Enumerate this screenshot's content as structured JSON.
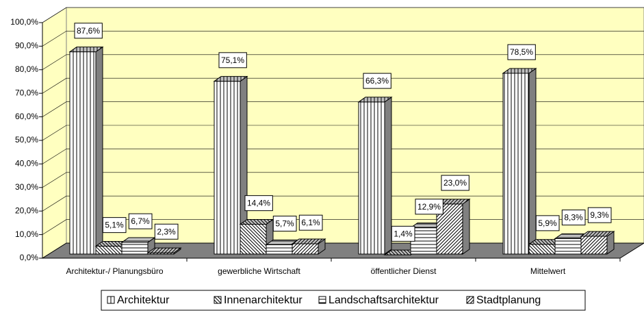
{
  "chart_data": {
    "type": "bar3d",
    "categories": [
      "Architektur-/ Planungsbüro",
      "gewerbliche Wirtschaft",
      "öffentlicher Dienst",
      "Mittelwert"
    ],
    "series": [
      {
        "name": "Architektur",
        "color": "#000000",
        "values": [
          87.6,
          75.1,
          66.3,
          78.5
        ],
        "value_labels": [
          "87,6%",
          "75,1%",
          "66,3%",
          "78,5%"
        ]
      },
      {
        "name": "Innenarchitektur",
        "color": "#000000",
        "values": [
          5.1,
          14.4,
          1.4,
          5.9
        ],
        "value_labels": [
          "5,1%",
          "14,4%",
          "1,4%",
          "5,9%"
        ]
      },
      {
        "name": "Landschaftsarchitektur",
        "color": "#000000",
        "values": [
          6.7,
          5.7,
          12.9,
          8.3
        ],
        "value_labels": [
          "6,7%",
          "5,7%",
          "12,9%",
          "8,3%"
        ]
      },
      {
        "name": "Stadtplanung",
        "color": "#000000",
        "values": [
          2.3,
          6.1,
          23.0,
          9.3
        ],
        "value_labels": [
          "2,3%",
          "6,1%",
          "23,0%",
          "9,3%"
        ]
      }
    ],
    "ylim": [
      0,
      100
    ],
    "yticks": [
      {
        "value": 0,
        "label": "0,0%"
      },
      {
        "value": 10,
        "label": "10,0%"
      },
      {
        "value": 20,
        "label": "20,0%"
      },
      {
        "value": 30,
        "label": "30,0%"
      },
      {
        "value": 40,
        "label": "40,0%"
      },
      {
        "value": 50,
        "label": "50,0%"
      },
      {
        "value": 60,
        "label": "60,0%"
      },
      {
        "value": 70,
        "label": "70,0%"
      },
      {
        "value": 80,
        "label": "80,0%"
      },
      {
        "value": 90,
        "label": "90,0%"
      },
      {
        "value": 100,
        "label": "100,0%"
      }
    ],
    "grid": true,
    "legend": "bottom",
    "wall_color": "#ffffc0",
    "floor_color": "#808080"
  }
}
